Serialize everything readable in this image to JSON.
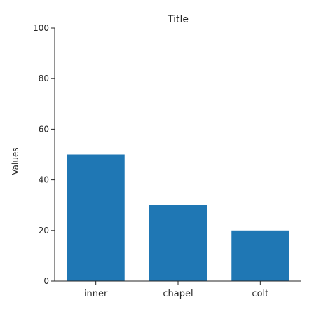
{
  "chart_data": {
    "type": "bar",
    "title": "Title",
    "xlabel": "",
    "ylabel": "Values",
    "categories": [
      "inner",
      "chapel",
      "colt"
    ],
    "values": [
      50,
      30,
      20
    ],
    "ylim": [
      0,
      100
    ],
    "yticks": [
      0,
      20,
      40,
      60,
      80,
      100
    ],
    "grid": false,
    "bar_color": "#1f77b4"
  }
}
